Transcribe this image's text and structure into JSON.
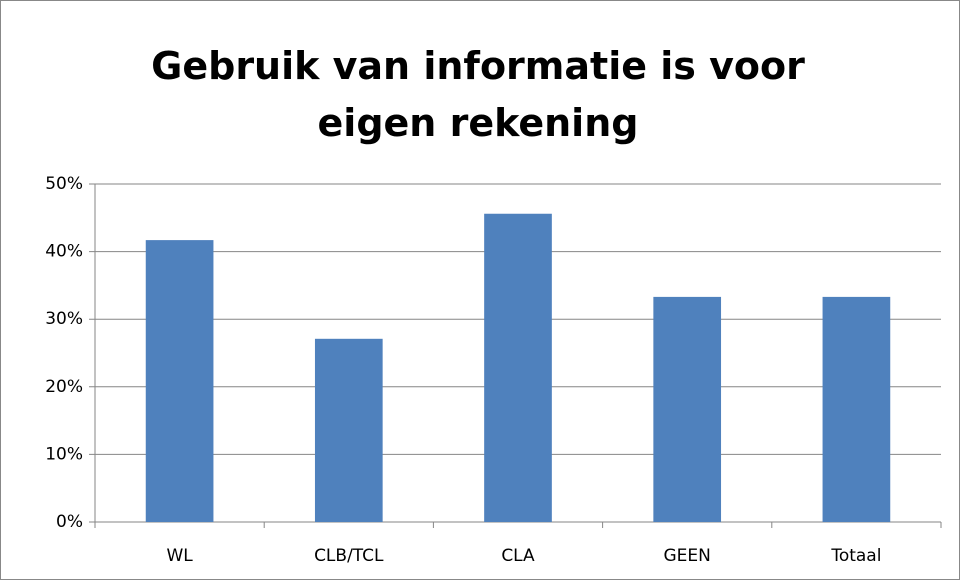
{
  "chart_data": {
    "type": "bar",
    "title": "Gebruik van informatie is voor eigen rekening",
    "categories": [
      "WL",
      "CLB/TCL",
      "CLA",
      "GEEN",
      "Totaal"
    ],
    "values": [
      41.7,
      27.1,
      45.6,
      33.3,
      33.3
    ],
    "color": "#4f81bd",
    "ylim": [
      0,
      50
    ],
    "yticks": [
      {
        "value": 0,
        "label": "0%"
      },
      {
        "value": 10,
        "label": "10%"
      },
      {
        "value": 20,
        "label": "20%"
      },
      {
        "value": 30,
        "label": "30%"
      },
      {
        "value": 40,
        "label": "40%"
      },
      {
        "value": 50,
        "label": "50%"
      }
    ],
    "grid": true
  }
}
